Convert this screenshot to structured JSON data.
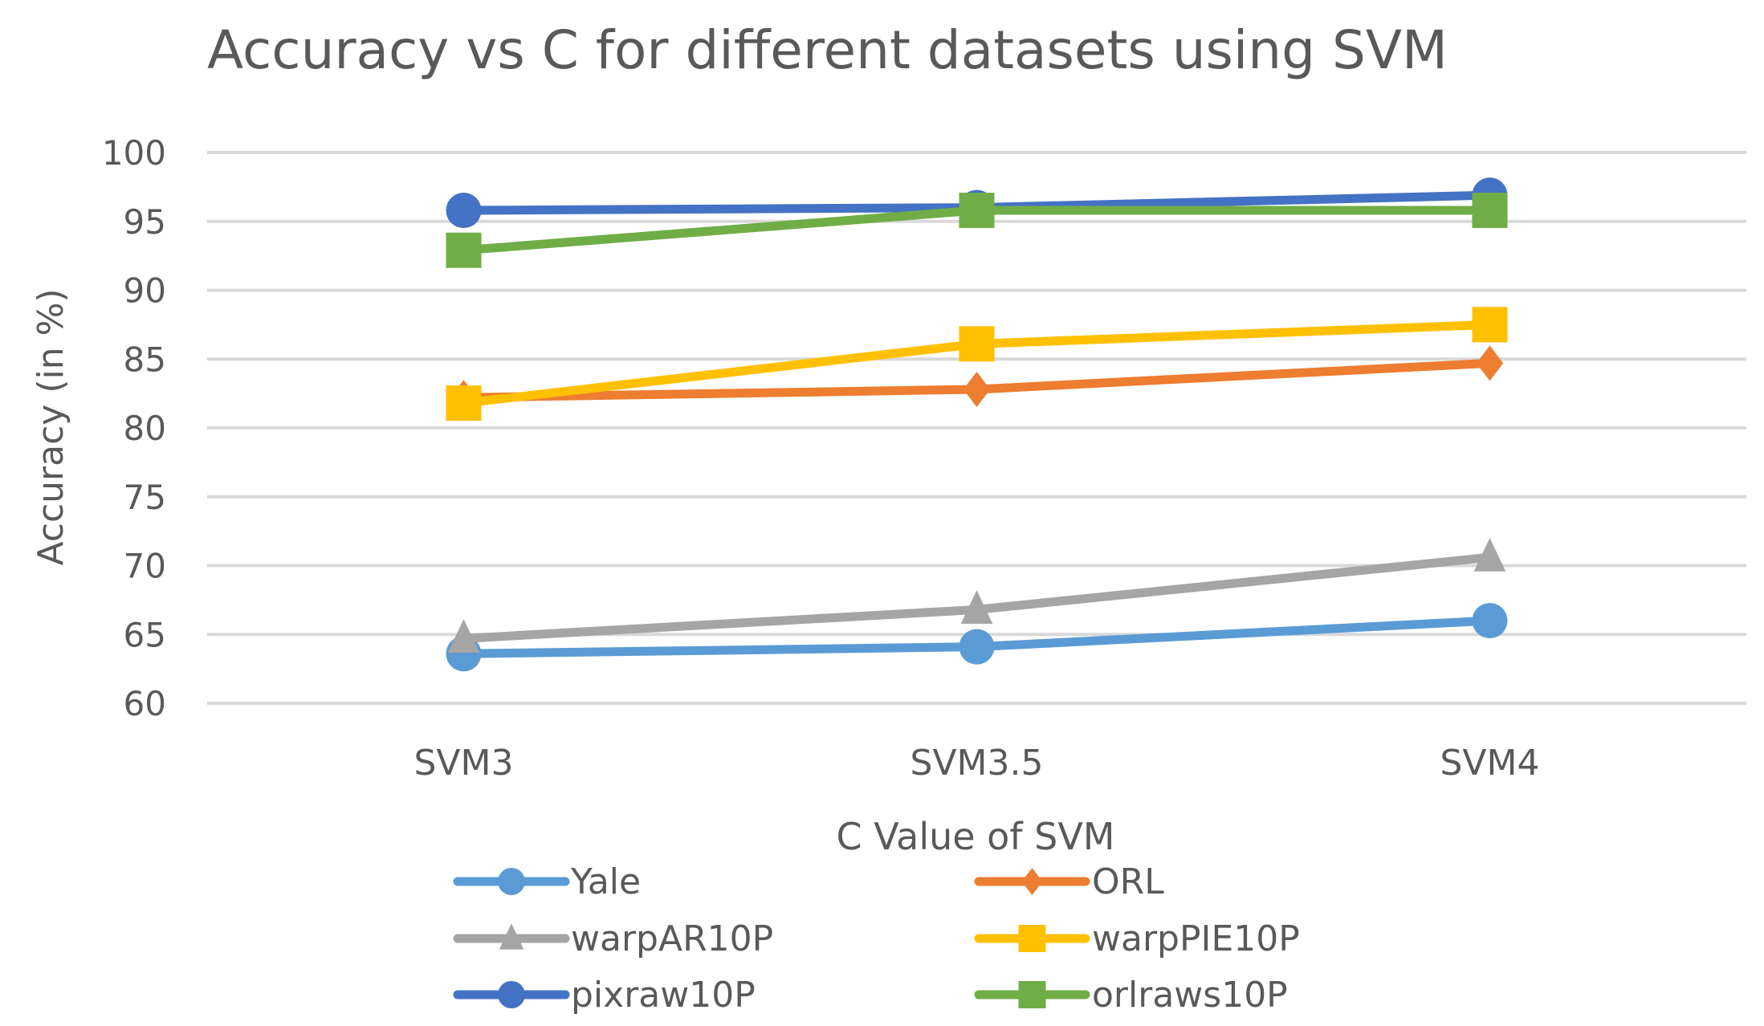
{
  "chart_data": {
    "type": "line",
    "title": "Accuracy vs C for different datasets using SVM",
    "xlabel": "C Value of SVM",
    "ylabel": "Accuracy (in %)",
    "categories": [
      "SVM3",
      "SVM3.5",
      "SVM4"
    ],
    "ylim": [
      60,
      100
    ],
    "yticks": [
      60,
      65,
      70,
      75,
      80,
      85,
      90,
      95,
      100
    ],
    "grid": true,
    "legend_position": "bottom",
    "series": [
      {
        "name": "Yale",
        "color": "#5B9BD5",
        "marker": "circle",
        "values": [
          63.6,
          64.1,
          66.0
        ]
      },
      {
        "name": "ORL",
        "color": "#ED7D31",
        "marker": "diamond",
        "values": [
          82.2,
          82.8,
          84.7
        ]
      },
      {
        "name": "warpAR10P",
        "color": "#A5A5A5",
        "marker": "triangle",
        "values": [
          64.7,
          66.8,
          70.6
        ]
      },
      {
        "name": "warpPIE10P",
        "color": "#FFC000",
        "marker": "square",
        "values": [
          81.8,
          86.1,
          87.5
        ]
      },
      {
        "name": "pixraw10P",
        "color": "#4472C4",
        "marker": "circle",
        "values": [
          95.8,
          96.0,
          96.9
        ]
      },
      {
        "name": "orlraws10P",
        "color": "#70AD47",
        "marker": "square",
        "values": [
          92.9,
          95.8,
          95.8
        ]
      }
    ]
  }
}
